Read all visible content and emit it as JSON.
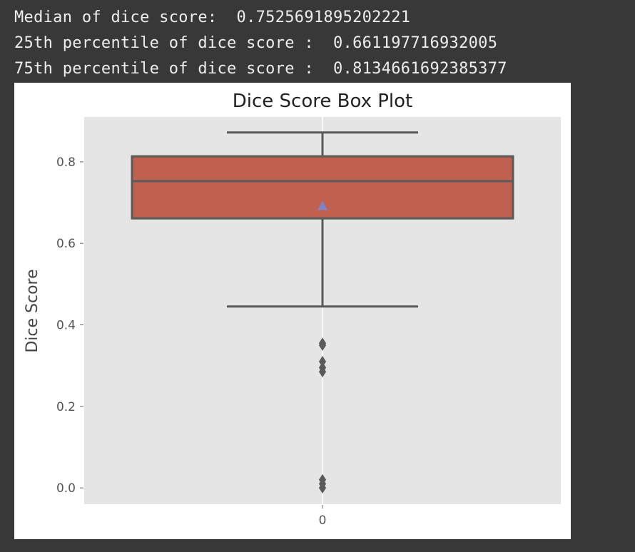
{
  "console": {
    "line1": "Median of dice score:  0.7525691895202221",
    "line2": "25th percentile of dice score :  0.661197716932005",
    "line3": "75th percentile of dice score :  0.8134661692385377"
  },
  "colors": {
    "background": "#383838",
    "plot_bg": "#e5e5e5",
    "box_fill": "#c0614f",
    "line": "#5a5a5a",
    "mean_marker": "#7f84c9"
  },
  "chart_data": {
    "type": "box",
    "title": "Dice Score Box Plot",
    "ylabel": "Dice Score",
    "categories": [
      "0"
    ],
    "yticks": [
      0.0,
      0.2,
      0.4,
      0.6,
      0.8
    ],
    "ytick_labels": [
      "0.0",
      "0.2",
      "0.4",
      "0.6",
      "0.8"
    ],
    "ylim": [
      -0.04,
      0.91
    ],
    "grid": true,
    "box": {
      "q1": 0.661197716932005,
      "median": 0.7525691895202221,
      "q3": 0.8134661692385377,
      "whisker_low": 0.445,
      "whisker_high": 0.872,
      "mean": 0.692,
      "outliers": [
        0.355,
        0.35,
        0.31,
        0.295,
        0.285,
        0.02,
        0.01,
        0.0
      ]
    }
  }
}
